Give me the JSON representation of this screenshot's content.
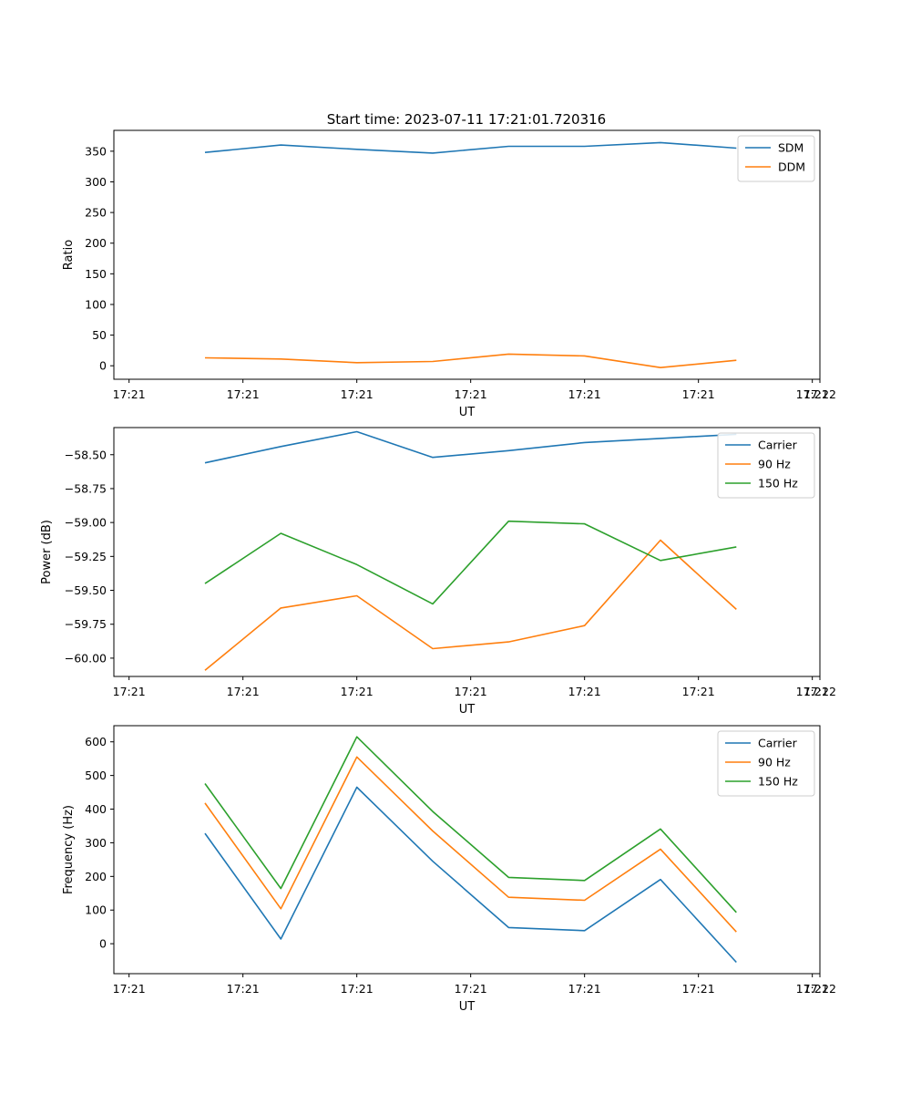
{
  "figure_title": "Start time: 2023-07-11 17:21:01.720316",
  "colors": {
    "blue": "#1f77b4",
    "orange": "#ff7f0e",
    "green": "#2ca02c",
    "axis": "#000000"
  },
  "chart_data": [
    {
      "type": "line",
      "title": "Start time: 2023-07-11 17:21:01.720316",
      "xlabel": "UT",
      "ylabel": "Ratio",
      "x": [
        1,
        2,
        3,
        4,
        5,
        6,
        7,
        8
      ],
      "x_ticks": [
        0,
        1.5,
        3,
        4.5,
        6,
        7.5,
        9
      ],
      "x_tick_labels": [
        "17:21",
        "17:21",
        "17:21",
        "17:21",
        "17:21",
        "17:21",
        "17:21",
        "17:22"
      ],
      "x_tick_values": [
        0,
        1.5,
        3,
        4.5,
        6,
        7.5,
        9,
        9.1
      ],
      "xlim": [
        -0.2,
        9.1
      ],
      "ylim": [
        -22,
        384
      ],
      "y_ticks": [
        0,
        50,
        100,
        150,
        200,
        250,
        300,
        350
      ],
      "y_tick_labels": [
        "0",
        "50",
        "100",
        "150",
        "200",
        "250",
        "300",
        "350"
      ],
      "legend_position": "top-right",
      "series": [
        {
          "name": "SDM",
          "color": "#1f77b4",
          "values": [
            348,
            360,
            353,
            347,
            358,
            358,
            364,
            355
          ]
        },
        {
          "name": "DDM",
          "color": "#ff7f0e",
          "values": [
            13,
            11,
            5,
            7,
            19,
            16,
            -3,
            9
          ]
        }
      ]
    },
    {
      "type": "line",
      "title": "",
      "xlabel": "UT",
      "ylabel": "Power (dB)",
      "x": [
        1,
        2,
        3,
        4,
        5,
        6,
        7,
        8
      ],
      "x_tick_labels": [
        "17:21",
        "17:21",
        "17:21",
        "17:21",
        "17:21",
        "17:21",
        "17:21",
        "17:22"
      ],
      "x_tick_values": [
        0,
        1.5,
        3,
        4.5,
        6,
        7.5,
        9,
        9.1
      ],
      "xlim": [
        -0.2,
        9.1
      ],
      "ylim": [
        -60.135,
        -58.3
      ],
      "y_ticks": [
        -60.0,
        -59.75,
        -59.5,
        -59.25,
        -59.0,
        -58.75,
        -58.5
      ],
      "y_tick_labels": [
        "−60.00",
        "−59.75",
        "−59.50",
        "−59.25",
        "−59.00",
        "−58.75",
        "−58.50"
      ],
      "legend_position": "top-right",
      "series": [
        {
          "name": "Carrier",
          "color": "#1f77b4",
          "values": [
            -58.56,
            -58.44,
            -58.33,
            -58.52,
            -58.47,
            -58.41,
            -58.38,
            -58.35
          ]
        },
        {
          "name": "90 Hz",
          "color": "#ff7f0e",
          "values": [
            -60.09,
            -59.63,
            -59.54,
            -59.93,
            -59.88,
            -59.76,
            -59.13,
            -59.64
          ]
        },
        {
          "name": "150 Hz",
          "color": "#2ca02c",
          "values": [
            -59.45,
            -59.08,
            -59.31,
            -59.6,
            -58.99,
            -59.01,
            -59.28,
            -59.18
          ]
        }
      ]
    },
    {
      "type": "line",
      "title": "",
      "xlabel": "UT",
      "ylabel": "Frequency (Hz)",
      "x": [
        1,
        2,
        3,
        4,
        5,
        6,
        7,
        8
      ],
      "x_tick_labels": [
        "17:21",
        "17:21",
        "17:21",
        "17:21",
        "17:21",
        "17:21",
        "17:21",
        "17:22"
      ],
      "x_tick_values": [
        0,
        1.5,
        3,
        4.5,
        6,
        7.5,
        9,
        9.1
      ],
      "xlim": [
        -0.2,
        9.1
      ],
      "ylim": [
        -89,
        648
      ],
      "y_ticks": [
        0,
        100,
        200,
        300,
        400,
        500,
        600
      ],
      "y_tick_labels": [
        "0",
        "100",
        "200",
        "300",
        "400",
        "500",
        "600"
      ],
      "legend_position": "top-right",
      "series": [
        {
          "name": "Carrier",
          "color": "#1f77b4",
          "values": [
            328,
            14,
            465,
            245,
            48,
            39,
            191,
            -55
          ]
        },
        {
          "name": "90 Hz",
          "color": "#ff7f0e",
          "values": [
            418,
            104,
            555,
            335,
            138,
            129,
            281,
            35
          ]
        },
        {
          "name": "150 Hz",
          "color": "#2ca02c",
          "values": [
            476,
            164,
            615,
            393,
            197,
            188,
            341,
            93
          ]
        }
      ]
    }
  ]
}
